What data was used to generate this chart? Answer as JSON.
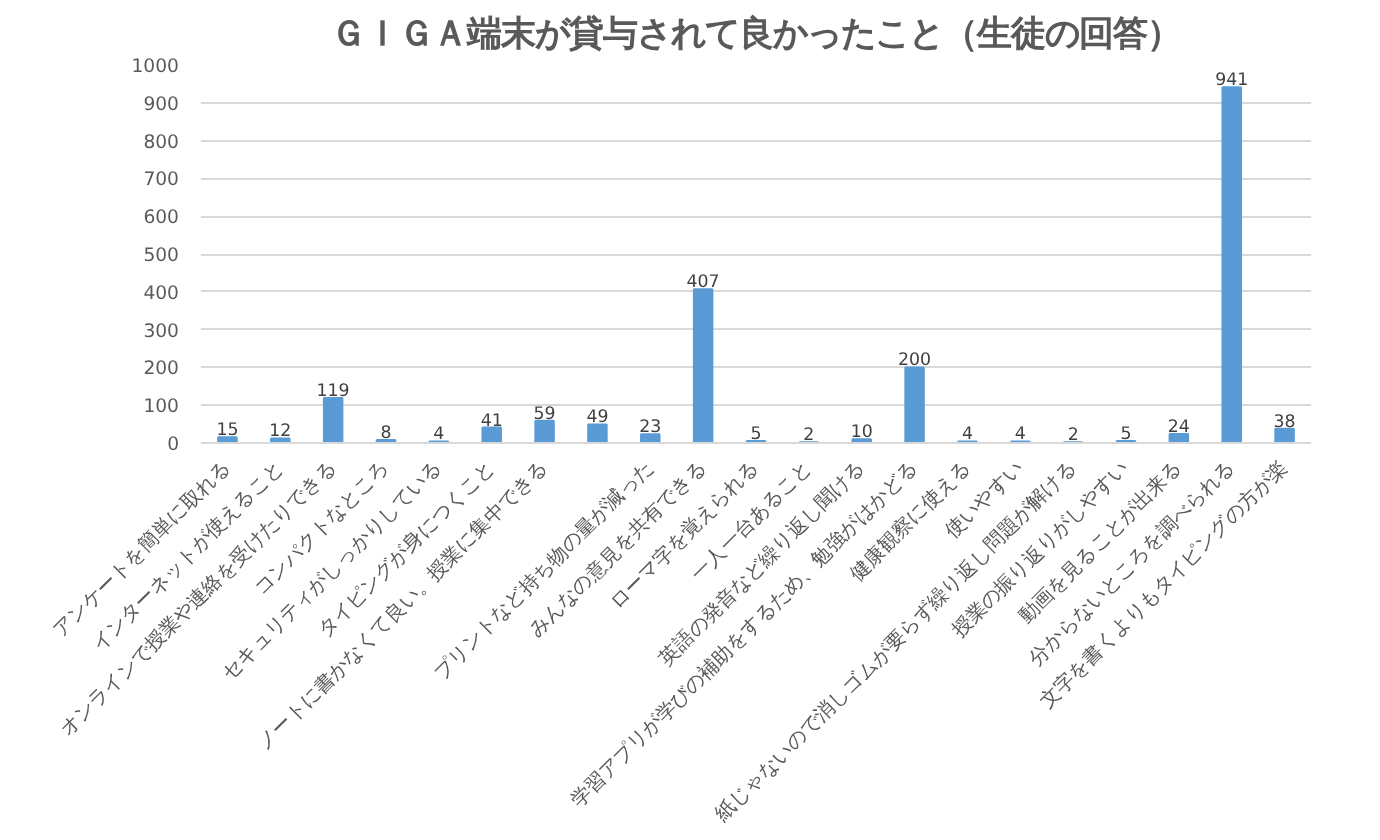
{
  "chart_data": {
    "type": "bar",
    "title": "ＧＩＧＡ端末が貸与されて良かったこと（生徒の回答）",
    "categories": [
      "アンケートを簡単に取れる",
      "インターネットが使えること",
      "オンラインで授業や連絡を受けたりできる",
      "コンパクトなところ",
      "セキュリティがしっかりしている",
      "タイピングが身につくこと",
      "ノートに書かなくて良い。授業に集中できる",
      null,
      "プリントなど持ち物の量が減った",
      "みんなの意見を共有できる",
      "ローマ字を覚えられる",
      "一人一台あること",
      "英語の発音など繰り返し聞ける",
      "学習アプリが学びの補助をするため、勉強がはかどる",
      "健康観察に使える",
      "使いやすい",
      "紙じゃないので消しゴムが要らず繰り返し問題が解ける",
      "授業の振り返りがしやすい",
      "動画を見ることが出来る",
      "分からないところを調べられる",
      "文字を書くよりもタイピングの方が楽"
    ],
    "values": [
      15,
      12,
      119,
      8,
      4,
      41,
      59,
      49,
      23,
      407,
      5,
      2,
      10,
      200,
      4,
      4,
      2,
      5,
      24,
      941,
      38
    ],
    "color": "#5b9bd5",
    "data_labels": true,
    "ylim": [
      0,
      1000
    ],
    "yticks": [
      0,
      100,
      200,
      300,
      400,
      500,
      600,
      700,
      800,
      900,
      1000
    ],
    "grid": "y"
  }
}
